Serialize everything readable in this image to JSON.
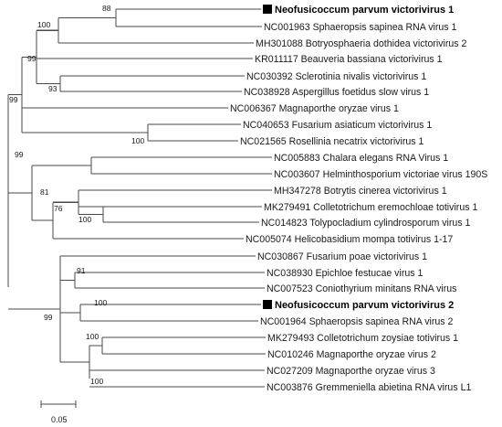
{
  "taxa": [
    "Neofusicoccum parvum victorivirus 1",
    "NC001963 Sphaeropsis sapinea RNA virus 1",
    "MH301088 Botryosphaeria dothidea victorivirus 2",
    "KR011117 Beauveria bassiana victorivirus 1",
    "NC030392 Sclerotinia nivalis victorivirus 1",
    "NC038928 Aspergillus foetidus slow virus 1",
    "NC006367 Magnaporthe oryzae virus 1",
    "NC040653 Fusarium asiaticum victorivirus 1",
    "NC021565 Rosellinia necatrix victorivirus 1",
    "NC005883 Chalara elegans RNA Virus 1",
    "NC003607 Helminthosporium victoriae virus 190S",
    "MH347278 Botrytis cinerea victorivirus 1",
    "MK279491 Colletotrichum eremochloae totivirus 1",
    "NC014823 Tolypocladium cylindrosporum virus 1",
    "NC005074 Helicobasidium mompa totivirus 1-17",
    "NC030867 Fusarium poae victorivirus 1",
    "NC038930 Epichloe festucae virus 1",
    "NC007523 Coniothyrium minitans RNA virus",
    "Neofusicoccum parvum victorivirus 2",
    "NC001964 Sphaeropsis sapinea RNA virus 2",
    "MK279493 Colletotrichum zoysiae totivirus 1",
    "NC010246 Magnaporthe oryzae virus 2",
    "NC027209 Magnaporthe oryzae virus 3",
    "NC003876 Gremmeniella abietina RNA virus L1"
  ],
  "highlighted_taxa": [
    0,
    18
  ],
  "bootstrap": {
    "b88": "88",
    "b100a": "100",
    "b99a": "99",
    "b93": "93",
    "b99root": "99",
    "b100b": "100",
    "b99b": "99",
    "b81": "81",
    "b76": "76",
    "b100c": "100",
    "b91": "91",
    "b99c": "99",
    "b100d": "100",
    "b100e": "100",
    "b100f": "100"
  },
  "scale_bar": {
    "label": "0.05"
  },
  "colors": {
    "branch": "#4a4a4a",
    "marker": "#000000"
  }
}
